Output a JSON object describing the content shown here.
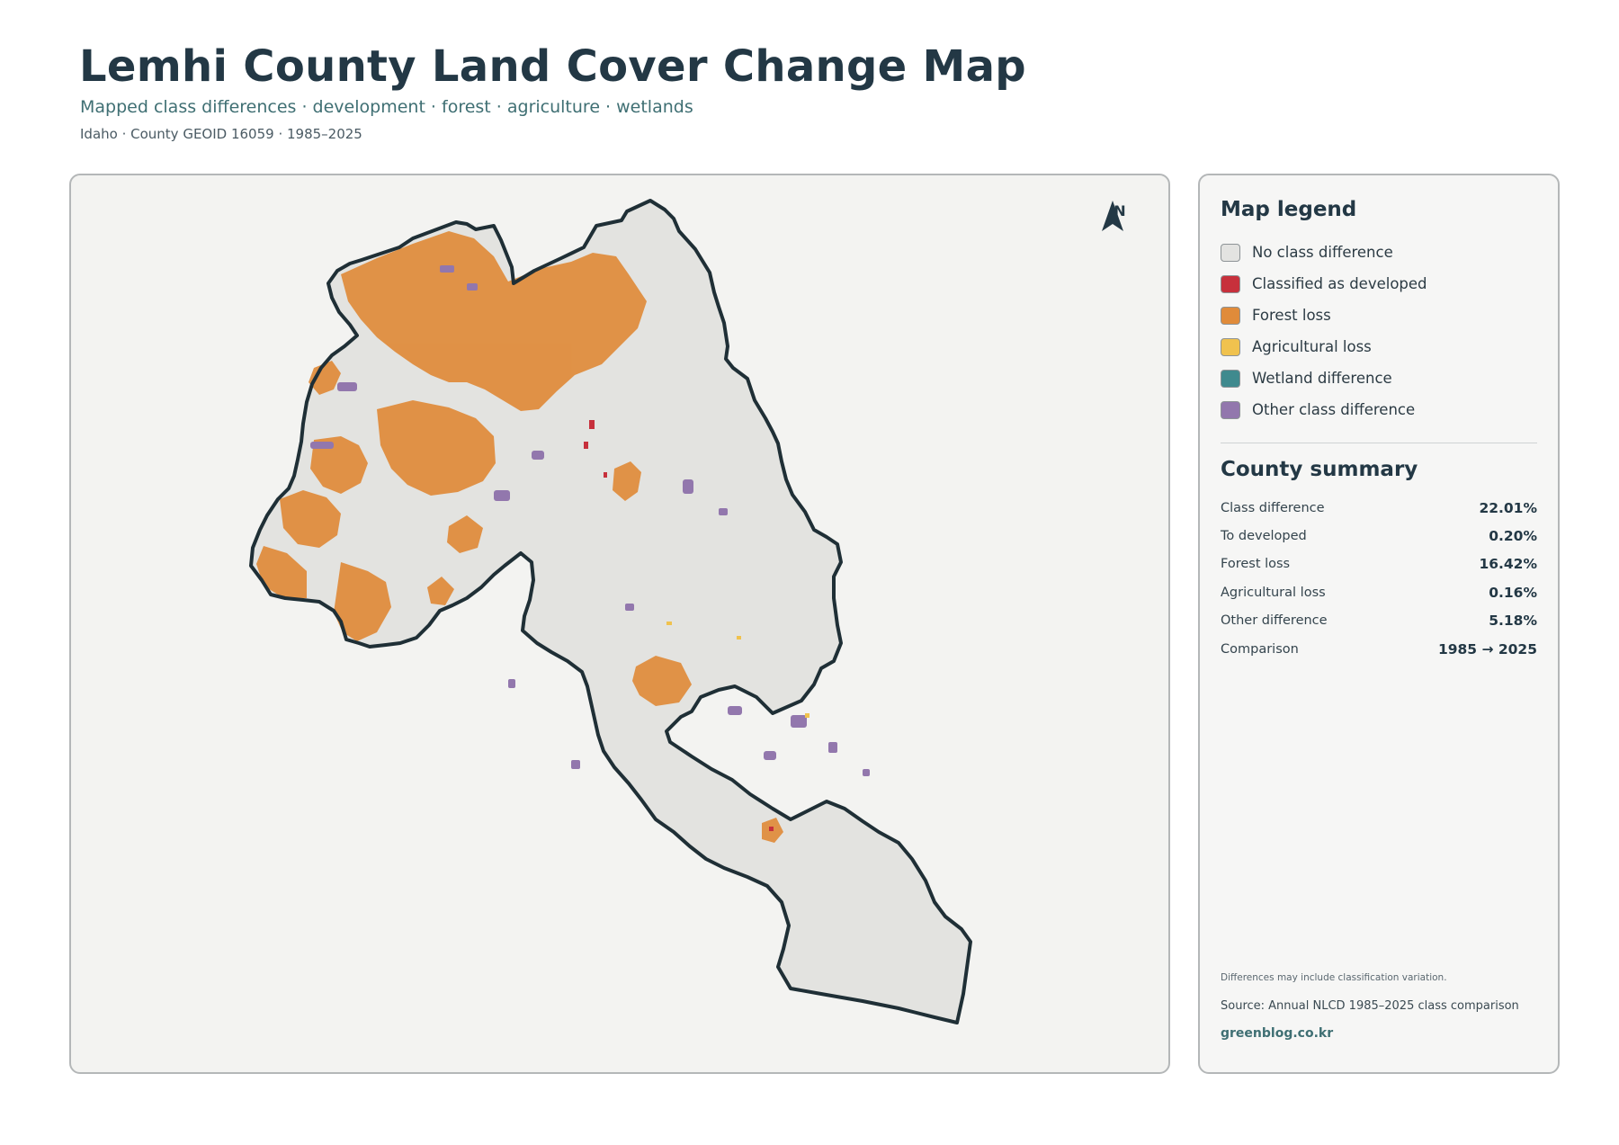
{
  "header": {
    "title": "Lemhi County Land Cover Change Map",
    "subtitle": "Mapped class differences · development · forest · agriculture · wetlands",
    "meta": "Idaho · County GEOID 16059 · 1985–2025"
  },
  "map": {
    "north_label": "N",
    "icon": "north-arrow-icon",
    "colors": {
      "background": "#f3f3f1",
      "county_fill": "#e3e3e0",
      "boundary": "#1f2f36"
    }
  },
  "legend": {
    "title": "Map legend",
    "items": [
      {
        "label": "No class difference",
        "color": "#e3e3e1"
      },
      {
        "label": "Classified as developed",
        "color": "#c7303c"
      },
      {
        "label": "Forest loss",
        "color": "#e08b3a"
      },
      {
        "label": "Agricultural loss",
        "color": "#f0c24e"
      },
      {
        "label": "Wetland difference",
        "color": "#3f8a8e"
      },
      {
        "label": "Other class difference",
        "color": "#9277ad"
      }
    ]
  },
  "summary": {
    "title": "County summary",
    "rows": [
      {
        "label": "Class difference",
        "value": "22.01%"
      },
      {
        "label": "To developed",
        "value": "0.20%"
      },
      {
        "label": "Forest loss",
        "value": "16.42%"
      },
      {
        "label": "Agricultural loss",
        "value": "0.16%"
      },
      {
        "label": "Other difference",
        "value": "5.18%"
      },
      {
        "label": "Comparison",
        "value": "1985 → 2025"
      }
    ]
  },
  "footer": {
    "note": "Differences may include classification variation.",
    "source": "Source: Annual NLCD 1985–2025 class comparison",
    "site": "greenblog.co.kr"
  }
}
